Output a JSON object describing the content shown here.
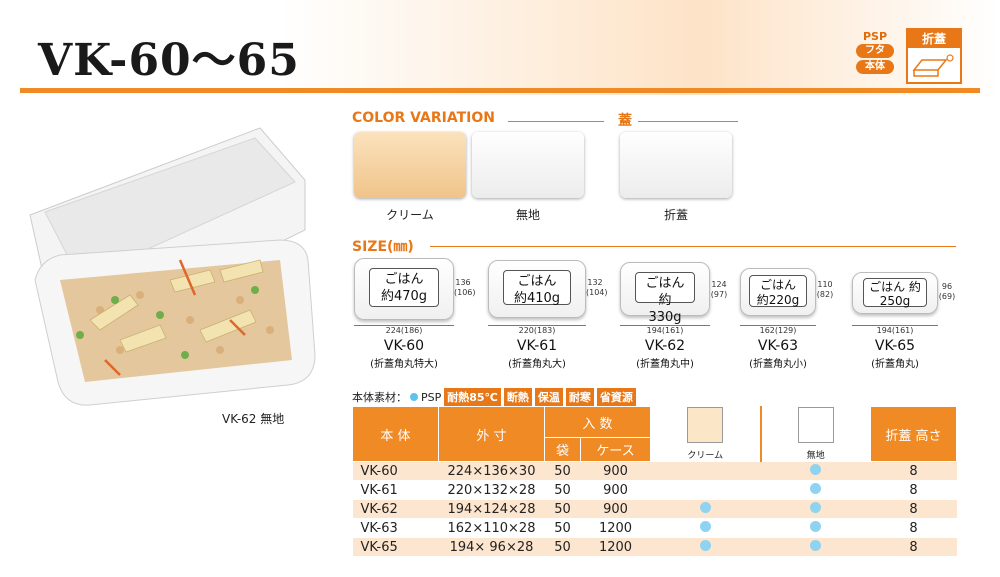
{
  "header": {
    "title": "VK-60〜65"
  },
  "badges": {
    "psp": "PSP",
    "futa": "フタ",
    "hontai": "本体",
    "fold": "折蓋"
  },
  "photo": {
    "caption": "VK-62 無地"
  },
  "color_variation": {
    "title": "COLOR VARIATION",
    "items": [
      {
        "label": "クリーム",
        "color": "#f6d6a6"
      },
      {
        "label": "無地",
        "color": "#ffffff"
      }
    ],
    "lid_title": "蓋",
    "lid_label": "折蓋"
  },
  "size": {
    "title": "SIZE(㎜)",
    "models": [
      {
        "name": "VK-60",
        "sub": "(折蓋角丸特大)",
        "text": "ごはん 約470g",
        "w": "224(186)",
        "h": "136 (106)"
      },
      {
        "name": "VK-61",
        "sub": "(折蓋角丸大)",
        "text": "ごはん 約410g",
        "w": "220(183)",
        "h": "132 (104)"
      },
      {
        "name": "VK-62",
        "sub": "(折蓋角丸中)",
        "text": "ごはん 約330g",
        "w": "194(161)",
        "h": "124 (97)"
      },
      {
        "name": "VK-63",
        "sub": "(折蓋角丸小)",
        "text": "ごはん 約220g",
        "w": "162(129)",
        "h": "110 (82)"
      },
      {
        "name": "VK-65",
        "sub": "(折蓋角丸)",
        "text": "ごはん 約250g",
        "w": "194(161)",
        "h": "96 (69)"
      }
    ]
  },
  "material": {
    "label": "本体素材：",
    "psp": "PSP",
    "tags": [
      "耐熱85℃",
      "断熱",
      "保温",
      "耐寒",
      "省資源"
    ]
  },
  "table": {
    "headers": {
      "body": "本 体",
      "dims": "外 寸",
      "qty": "入 数",
      "bag": "袋",
      "case": "ケース",
      "cream": "クリーム",
      "plain": "無地",
      "fold": "折蓋 高さ"
    },
    "rows": [
      {
        "model": "VK-60",
        "dims": "224×136×30",
        "bag": "50",
        "case": "900",
        "cream": false,
        "plain": true,
        "height": "8"
      },
      {
        "model": "VK-61",
        "dims": "220×132×28",
        "bag": "50",
        "case": "900",
        "cream": false,
        "plain": true,
        "height": "8"
      },
      {
        "model": "VK-62",
        "dims": "194×124×28",
        "bag": "50",
        "case": "900",
        "cream": true,
        "plain": true,
        "height": "8"
      },
      {
        "model": "VK-63",
        "dims": "162×110×28",
        "bag": "50",
        "case": "1200",
        "cream": true,
        "plain": true,
        "height": "8"
      },
      {
        "model": "VK-65",
        "dims": "194× 96×28",
        "bag": "50",
        "case": "1200",
        "cream": true,
        "plain": true,
        "height": "8"
      }
    ]
  }
}
